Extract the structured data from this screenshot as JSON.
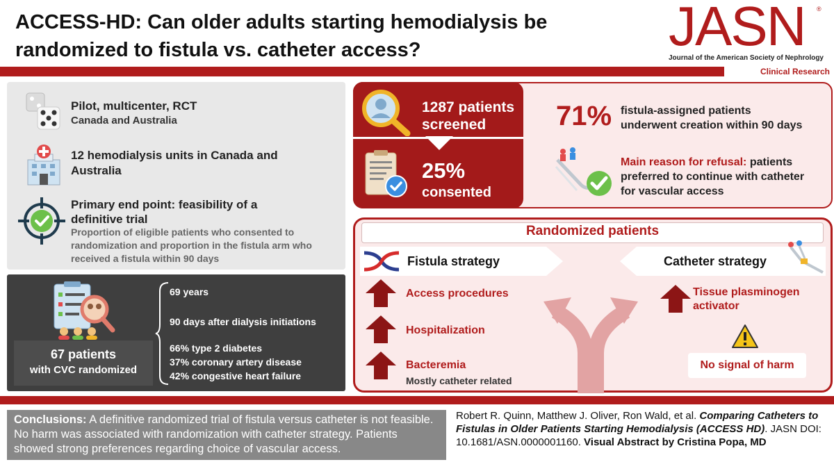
{
  "header": {
    "title_line1": "ACCESS-HD: Can older adults starting hemodialysis be",
    "title_line2": "randomized to fistula vs. catheter access?",
    "logo_main": "JASN",
    "logo_reg": "®",
    "logo_sub": "Journal of the American Society of Nephrology",
    "section_label": "Clinical Research"
  },
  "design": {
    "item1_title": "Pilot, multicenter, RCT",
    "item1_sub": "Canada and Australia",
    "item2_line1": "12 hemodialysis units in Canada and",
    "item2_line2": "Australia",
    "item3_title_line1": "Primary end point: feasibility of a",
    "item3_title_line2": "definitive trial",
    "item3_desc_line1": "Proportion of eligible patients who consented to",
    "item3_desc_line2": "randomization and proportion in the fistula arm who",
    "item3_desc_line3": "received a fistula within 90 days"
  },
  "population": {
    "count_line1": "67 patients",
    "count_line2": "with CVC randomized",
    "age": "69 years",
    "timing": "90 days after dialysis initiations",
    "diabetes": "66% type 2 diabetes",
    "cad": "37% coronary artery disease",
    "chf": "42% congestive heart failure"
  },
  "screening": {
    "screened_line1": "1287 patients",
    "screened_line2": "screened",
    "consented_pct": "25%",
    "consented_label": "consented",
    "fistula_pct": "71%",
    "fistula_line1": "fistula-assigned patients",
    "fistula_line2": "underwent creation within 90 days",
    "refusal_label": "Main reason for refusal:",
    "refusal_line1": " patients",
    "refusal_line2": "preferred to continue with catheter",
    "refusal_line3": "for vascular access"
  },
  "randomized": {
    "title": "Randomized patients",
    "fistula_label": "Fistula strategy",
    "catheter_label": "Catheter strategy",
    "f_out1": "Access procedures",
    "f_out2": "Hospitalization",
    "f_out3": "Bacteremia",
    "f_out3_sub": "Mostly catheter related",
    "c_out1_line1": "Tissue plasminogen",
    "c_out1_line2": "activator",
    "harm": "No signal of harm"
  },
  "footer": {
    "concl_label": "Conclusions:",
    "concl_text": " A definitive randomized trial of fistula versus catheter is not feasible. No harm was associated with randomization with catheter strategy. Patients showed strong preferences regarding  choice of vascular access.",
    "cite_authors": "Robert R. Quinn, Matthew J. Oliver, Ron Wald, et al. ",
    "cite_title": "Comparing Catheters to Fistulas in Older Patients Starting Hemodialysis (ACCESS HD)",
    "cite_doi": ". JASN DOI: 10.1681/ASN.0000001160. ",
    "cite_visual": "Visual Abstract by Cristina Popa, MD"
  },
  "colors": {
    "accent": "#b01c1c",
    "dark_panel": "#3f3f3f",
    "gray_panel": "#e8e8e8"
  }
}
